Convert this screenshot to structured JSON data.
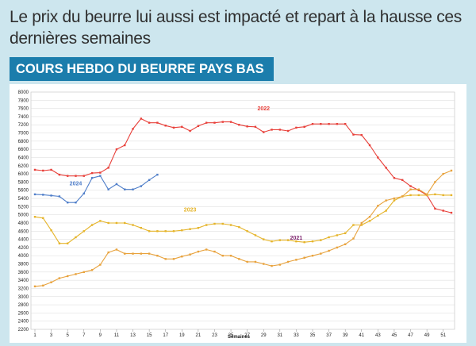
{
  "headline": "Le prix du beurre lui aussi est impacté et repart à la hausse ces dernières semaines",
  "banner": "COURS HEBDO DU BEURRE PAYS BAS",
  "chart_data": {
    "type": "line",
    "xlabel": "Semaines",
    "ylabel": "",
    "ylim": [
      2200,
      8000
    ],
    "y_ticks": [
      2200,
      2400,
      2600,
      2800,
      3000,
      3200,
      3400,
      3600,
      3800,
      4000,
      4200,
      4400,
      4600,
      4800,
      5000,
      5200,
      5400,
      5600,
      5800,
      6000,
      6200,
      6400,
      6600,
      6800,
      7000,
      7200,
      7400,
      7600,
      7800,
      8000
    ],
    "x_ticks": [
      1,
      3,
      5,
      7,
      9,
      11,
      13,
      15,
      17,
      19,
      21,
      23,
      25,
      27,
      29,
      31,
      33,
      35,
      37,
      39,
      41,
      43,
      45,
      47,
      49,
      51
    ],
    "xlim": [
      1,
      52
    ],
    "grid": true,
    "series": [
      {
        "name": "2022",
        "color": "#e8403a",
        "label_week": 29,
        "label_value": 7550,
        "x": [
          1,
          2,
          3,
          4,
          5,
          6,
          7,
          8,
          9,
          10,
          11,
          12,
          13,
          14,
          15,
          16,
          17,
          18,
          19,
          20,
          21,
          22,
          23,
          24,
          25,
          26,
          27,
          28,
          29,
          30,
          31,
          32,
          33,
          34,
          35,
          36,
          37,
          38,
          39,
          40,
          41,
          42,
          43,
          44,
          45,
          46,
          47,
          48,
          49,
          50,
          51,
          52
        ],
        "y": [
          6100,
          6080,
          6100,
          5980,
          5950,
          5950,
          5950,
          6020,
          6030,
          6150,
          6600,
          6700,
          7100,
          7350,
          7250,
          7250,
          7180,
          7130,
          7150,
          7050,
          7170,
          7250,
          7250,
          7270,
          7270,
          7200,
          7160,
          7150,
          7020,
          7080,
          7080,
          7050,
          7130,
          7150,
          7220,
          7220,
          7220,
          7220,
          7220,
          6960,
          6950,
          6700,
          6400,
          6150,
          5900,
          5850,
          5700,
          5600,
          5480,
          5150,
          5100,
          5050
        ]
      },
      {
        "name": "2024",
        "color": "#4f7ec9",
        "label_week": 6,
        "label_value": 5720,
        "x": [
          1,
          2,
          3,
          4,
          5,
          6,
          7,
          8,
          9,
          10,
          11,
          12,
          13,
          14,
          15,
          16
        ],
        "y": [
          5500,
          5490,
          5470,
          5450,
          5300,
          5300,
          5520,
          5900,
          5950,
          5620,
          5750,
          5620,
          5620,
          5700,
          5850,
          5980
        ]
      },
      {
        "name": "2023",
        "color": "#e5b42a",
        "label_week": 20,
        "label_value": 5080,
        "x": [
          1,
          2,
          3,
          4,
          5,
          6,
          7,
          8,
          9,
          10,
          11,
          12,
          13,
          14,
          15,
          16,
          17,
          18,
          19,
          20,
          21,
          22,
          23,
          24,
          25,
          26,
          27,
          28,
          29,
          30,
          31,
          32,
          33,
          34,
          35,
          36,
          37,
          38,
          39,
          40,
          41,
          42,
          43,
          44,
          45,
          46,
          47,
          48,
          49,
          50,
          51,
          52
        ],
        "y": [
          4950,
          4920,
          4620,
          4300,
          4300,
          4450,
          4600,
          4750,
          4850,
          4800,
          4800,
          4800,
          4750,
          4680,
          4600,
          4600,
          4600,
          4600,
          4620,
          4650,
          4680,
          4750,
          4780,
          4780,
          4750,
          4700,
          4600,
          4500,
          4400,
          4350,
          4380,
          4380,
          4350,
          4330,
          4350,
          4380,
          4450,
          4500,
          4550,
          4750,
          4750,
          4850,
          4980,
          5100,
          5350,
          5450,
          5480,
          5480,
          5480,
          5500,
          5480,
          5480
        ]
      },
      {
        "name": "2021",
        "color": "#e8a23c",
        "label_color": "#7b1f6b",
        "label_week": 33,
        "label_value": 4390,
        "x": [
          1,
          2,
          3,
          4,
          5,
          6,
          7,
          8,
          9,
          10,
          11,
          12,
          13,
          14,
          15,
          16,
          17,
          18,
          19,
          20,
          21,
          22,
          23,
          24,
          25,
          26,
          27,
          28,
          29,
          30,
          31,
          32,
          33,
          34,
          35,
          36,
          37,
          38,
          39,
          40,
          41,
          42,
          43,
          44,
          45,
          46,
          47,
          48,
          49,
          50,
          51,
          52
        ],
        "y": [
          3250,
          3270,
          3350,
          3450,
          3500,
          3550,
          3600,
          3650,
          3780,
          4080,
          4150,
          4050,
          4050,
          4050,
          4050,
          4000,
          3920,
          3920,
          3980,
          4030,
          4100,
          4150,
          4100,
          4000,
          4000,
          3920,
          3850,
          3850,
          3800,
          3750,
          3780,
          3850,
          3900,
          3950,
          4000,
          4050,
          4120,
          4200,
          4280,
          4420,
          4800,
          4950,
          5220,
          5350,
          5400,
          5450,
          5620,
          5620,
          5500,
          5800,
          6000,
          6080
        ]
      }
    ]
  }
}
